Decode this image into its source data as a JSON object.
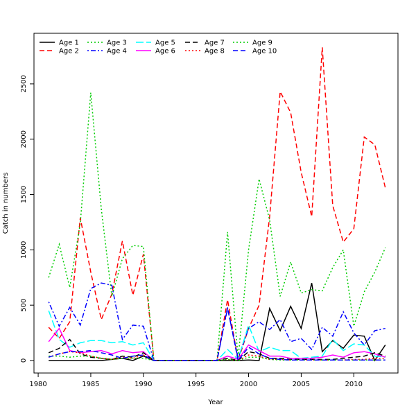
{
  "chart_data": {
    "type": "line",
    "x": [
      1981,
      1982,
      1983,
      1984,
      1985,
      1986,
      1987,
      1988,
      1989,
      1990,
      1991,
      1992,
      1993,
      1994,
      1995,
      1996,
      1997,
      1998,
      1999,
      2000,
      2001,
      2002,
      2003,
      2004,
      2005,
      2006,
      2007,
      2008,
      2009,
      2010,
      2011,
      2012,
      2013
    ],
    "series": [
      {
        "name": "Age 1",
        "color": "#000000",
        "linestyle": "solid",
        "values": [
          0,
          0,
          0,
          0,
          0,
          0,
          10,
          20,
          0,
          40,
          0,
          0,
          0,
          0,
          0,
          0,
          0,
          0,
          0,
          5,
          0,
          470,
          270,
          490,
          290,
          700,
          80,
          180,
          110,
          230,
          220,
          0,
          140
        ]
      },
      {
        "name": "Age 2",
        "color": "#ff0000",
        "linestyle": "dashed",
        "values": [
          300,
          200,
          350,
          1290,
          800,
          370,
          600,
          1080,
          590,
          960,
          0,
          0,
          0,
          0,
          0,
          0,
          0,
          550,
          0,
          290,
          500,
          1300,
          2430,
          2240,
          1700,
          1300,
          2830,
          1400,
          1070,
          1190,
          2020,
          1950,
          1560
        ]
      },
      {
        "name": "Age 3",
        "color": "#00cd00",
        "linestyle": "dotted",
        "values": [
          750,
          1050,
          660,
          1240,
          2420,
          1370,
          580,
          920,
          1040,
          1030,
          0,
          0,
          0,
          0,
          0,
          0,
          0,
          1160,
          20,
          1000,
          1640,
          1270,
          580,
          890,
          610,
          640,
          630,
          840,
          1000,
          310,
          620,
          800,
          1020
        ]
      },
      {
        "name": "Age 4",
        "color": "#0000ff",
        "linestyle": "dashdot",
        "values": [
          530,
          310,
          480,
          320,
          650,
          700,
          680,
          190,
          320,
          310,
          0,
          0,
          0,
          0,
          0,
          0,
          0,
          470,
          20,
          290,
          350,
          280,
          370,
          170,
          200,
          100,
          300,
          220,
          440,
          250,
          140,
          270,
          290
        ]
      },
      {
        "name": "Age 5",
        "color": "#00ffff",
        "linestyle": "longdash",
        "values": [
          450,
          190,
          120,
          160,
          180,
          180,
          160,
          170,
          140,
          160,
          0,
          0,
          0,
          0,
          0,
          0,
          0,
          100,
          10,
          320,
          80,
          120,
          90,
          90,
          20,
          30,
          40,
          190,
          90,
          150,
          140,
          40,
          30
        ]
      },
      {
        "name": "Age 6",
        "color": "#ff00ff",
        "linestyle": "solid",
        "values": [
          170,
          290,
          90,
          70,
          80,
          90,
          60,
          90,
          70,
          80,
          0,
          0,
          0,
          0,
          0,
          0,
          0,
          40,
          10,
          140,
          90,
          40,
          40,
          20,
          20,
          20,
          30,
          50,
          30,
          70,
          80,
          60,
          30
        ]
      },
      {
        "name": "Age 7",
        "color": "#000000",
        "linestyle": "dashed",
        "values": [
          70,
          110,
          190,
          60,
          30,
          20,
          10,
          40,
          30,
          70,
          0,
          0,
          0,
          0,
          0,
          0,
          0,
          20,
          0,
          80,
          60,
          20,
          20,
          10,
          10,
          10,
          10,
          10,
          20,
          30,
          40,
          70,
          40
        ]
      },
      {
        "name": "Age 8",
        "color": "#ff0000",
        "linestyle": "dotted",
        "values": [
          30,
          60,
          80,
          70,
          40,
          20,
          10,
          30,
          20,
          50,
          0,
          0,
          0,
          0,
          0,
          0,
          0,
          10,
          0,
          50,
          40,
          10,
          10,
          5,
          5,
          5,
          5,
          5,
          5,
          10,
          10,
          20,
          20
        ]
      },
      {
        "name": "Age 9",
        "color": "#00cd00",
        "linestyle": "dotted",
        "values": [
          40,
          40,
          30,
          40,
          40,
          20,
          10,
          20,
          20,
          20,
          0,
          0,
          0,
          0,
          0,
          0,
          0,
          10,
          0,
          30,
          30,
          10,
          5,
          5,
          5,
          5,
          5,
          5,
          5,
          5,
          5,
          5,
          5
        ]
      },
      {
        "name": "Age 10",
        "color": "#0000ff",
        "linestyle": "dashed",
        "values": [
          30,
          60,
          80,
          80,
          90,
          70,
          50,
          20,
          40,
          50,
          0,
          0,
          0,
          0,
          0,
          0,
          0,
          480,
          0,
          120,
          60,
          20,
          10,
          5,
          5,
          5,
          5,
          5,
          5,
          5,
          5,
          5,
          5
        ]
      }
    ],
    "xlabel": "Year",
    "ylabel": "Catch in numbers",
    "xlim": [
      1979.6,
      2014.2
    ],
    "ylim": [
      -113,
      2957
    ],
    "xticks": [
      1980,
      1985,
      1990,
      1995,
      2000,
      2005,
      2010
    ],
    "yticks": [
      0,
      500,
      1000,
      1500,
      2000,
      2500
    ],
    "legend": "top-left"
  }
}
